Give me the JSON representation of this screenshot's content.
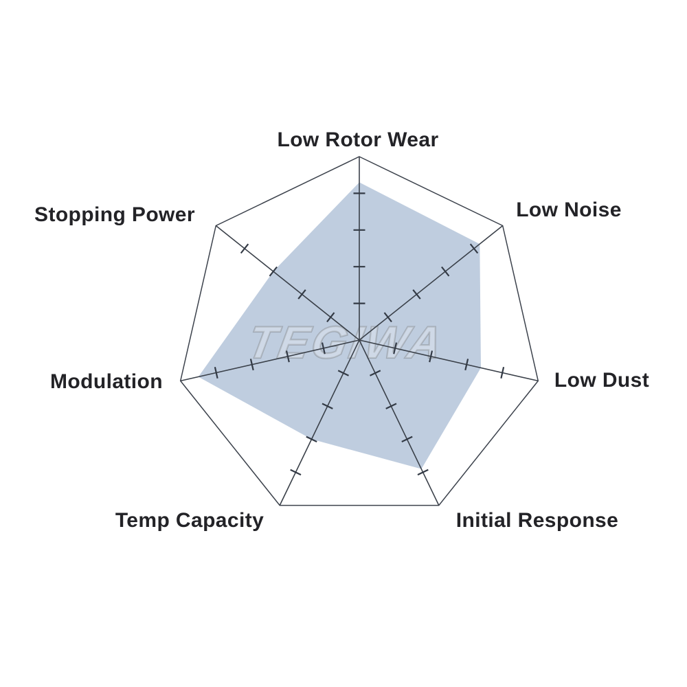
{
  "watermark": {
    "text": "TEGIWA",
    "color": "#99a1ab"
  },
  "chart_data": {
    "type": "radar",
    "title": "",
    "categories": [
      "Low Rotor Wear",
      "Low Noise",
      "Low Dust",
      "Initial Response",
      "Temp Capacity",
      "Modulation",
      "Stopping Power"
    ],
    "values": [
      4.3,
      4.2,
      3.4,
      3.9,
      3.0,
      4.5,
      3.0
    ],
    "axis_range": {
      "min": 0,
      "max": 5
    },
    "tick_values": [
      1,
      2,
      3,
      4
    ],
    "sides": 7,
    "grid": "single-outer-ring-with-axis-ticks",
    "legend": "none",
    "fill_color": "#bfcddf",
    "outline_color": "#3c424c",
    "axis_color": "#3a4049",
    "tick_color": "#333a45",
    "label_color": "#232327"
  }
}
